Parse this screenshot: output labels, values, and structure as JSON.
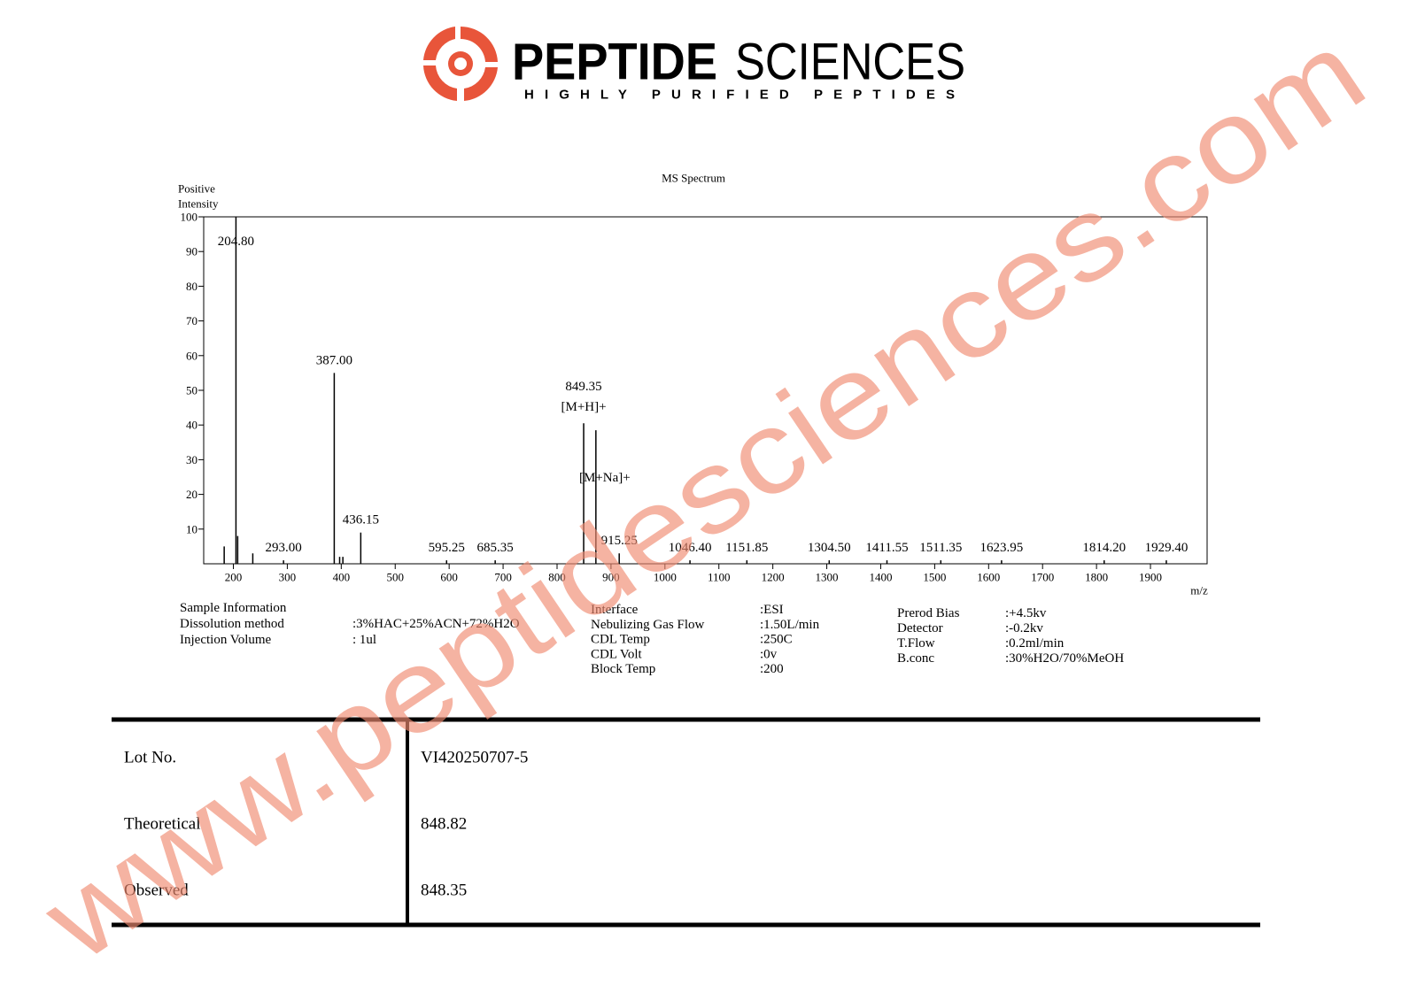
{
  "header": {
    "brand_bold": "PEPTIDE",
    "brand_light": "SCIENCES",
    "tagline": "HIGHLY PURIFIED PEPTIDES"
  },
  "chart_data": {
    "type": "spectrum",
    "title": "MS Spectrum",
    "y_label": [
      "Positive",
      "Intensity"
    ],
    "x_label": "m/z",
    "color": "#000000",
    "x": [
      183,
      204.8,
      208,
      236,
      293,
      387,
      397,
      403,
      436.15,
      595.25,
      685.35,
      849.35,
      872,
      915.25,
      1046.4,
      1151.85,
      1304.5,
      1411.55,
      1511.35,
      1623.95,
      1814.2,
      1929.4
    ],
    "values": [
      5,
      100,
      8,
      3,
      1,
      55,
      2,
      2,
      9,
      1,
      1,
      40.5,
      38.5,
      3,
      1,
      1,
      1,
      1,
      1,
      1,
      1,
      1
    ],
    "peak_labels": [
      null,
      "204.80",
      null,
      null,
      "293.00",
      "387.00",
      null,
      null,
      "436.15",
      "595.25",
      "685.35",
      "849.35",
      null,
      "915.25",
      "1046.40",
      "1151.85",
      "1304.50",
      "1411.55",
      "1511.35",
      "1623.95",
      "1814.20",
      "1929.40"
    ],
    "annotations": [
      null,
      null,
      null,
      null,
      null,
      null,
      null,
      null,
      null,
      null,
      null,
      "[M+H]+",
      "[M+Na]+",
      null,
      null,
      null,
      null,
      null,
      null,
      null,
      null,
      null
    ],
    "xlim": [
      145,
      2005
    ],
    "ylim": [
      0,
      100
    ],
    "xticks": [
      200,
      300,
      400,
      500,
      600,
      700,
      800,
      900,
      1000,
      1100,
      1200,
      1300,
      1400,
      1500,
      1600,
      1700,
      1800,
      1900
    ],
    "yticks": [
      10,
      20,
      30,
      40,
      50,
      60,
      70,
      80,
      90,
      100
    ]
  },
  "sample_info": {
    "heading": "Sample Information",
    "groups": [
      [
        {
          "label": "Dissolution method",
          "value": ":3%HAC+25%ACN+72%H2O"
        },
        {
          "label": "Injection Volume",
          "value": ": 1ul"
        }
      ],
      [
        {
          "label": "Interface",
          "value": ":ESI"
        },
        {
          "label": "Nebulizing Gas Flow",
          "value": ":1.50L/min"
        },
        {
          "label": "CDL Temp",
          "value": ":250C"
        },
        {
          "label": "CDL Volt",
          "value": ":0v"
        },
        {
          "label": "Block Temp",
          "value": ":200"
        }
      ],
      [
        {
          "label": "Prerod Bias",
          "value": ":+4.5kv"
        },
        {
          "label": "Detector",
          "value": ":-0.2kv"
        },
        {
          "label": "T.Flow",
          "value": ":0.2ml/min"
        },
        {
          "label": "B.conc",
          "value": ":30%H2O/70%MeOH"
        }
      ]
    ]
  },
  "table": {
    "rows": [
      [
        "Lot No.",
        "VI420250707-5"
      ],
      [
        "Theoretical",
        "848.82"
      ],
      [
        "Observed",
        "848.35"
      ]
    ]
  },
  "watermark": "www.peptidesciences.com"
}
